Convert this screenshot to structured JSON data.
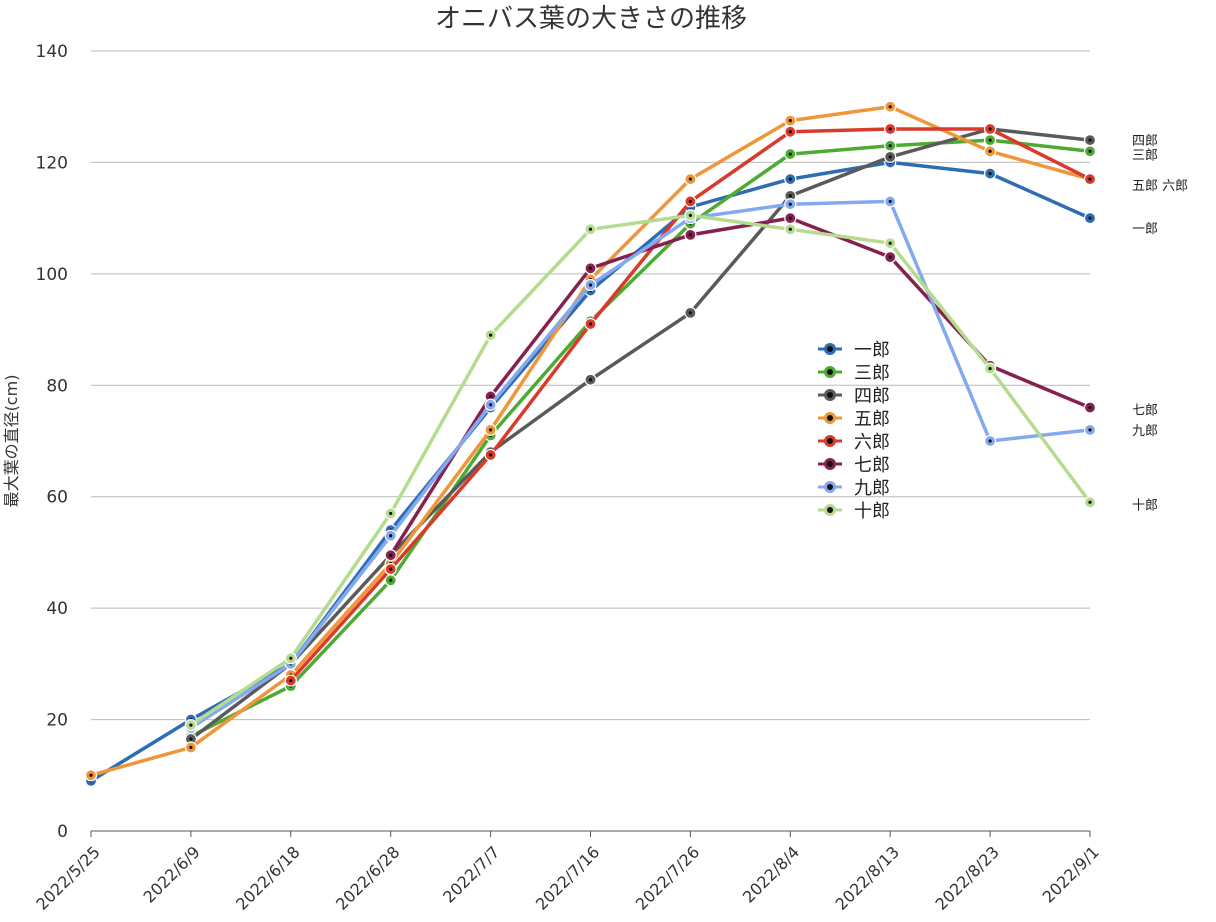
{
  "chart_data": {
    "type": "line",
    "title": "オニバス葉の大きさの推移",
    "xlabel": "",
    "ylabel": "最大葉の直径(cm)",
    "ylim": [
      0,
      140
    ],
    "yticks": [
      "0",
      "20",
      "40",
      "60",
      "80",
      "100",
      "120",
      "140"
    ],
    "grid": true,
    "legend_position": "right-center",
    "categories": [
      "2022/5/25",
      "2022/6/9",
      "2022/6/18",
      "2022/6/28",
      "2022/7/7",
      "2022/7/16",
      "2022/7/26",
      "2022/8/4",
      "2022/8/13",
      "2022/8/23",
      "2022/9/1"
    ],
    "series": [
      {
        "name": "一郎",
        "color": "#2e6db3",
        "values": [
          9,
          20,
          30,
          54,
          76,
          97,
          112,
          117,
          120,
          118,
          110
        ]
      },
      {
        "name": "三郎",
        "color": "#4daa33",
        "values": [
          null,
          17,
          26,
          45,
          71,
          91.5,
          109,
          121.5,
          123,
          124,
          122
        ]
      },
      {
        "name": "四郎",
        "color": "#5a5a5a",
        "values": [
          null,
          16.5,
          30,
          49.5,
          68,
          81,
          93,
          114,
          121,
          126,
          124
        ]
      },
      {
        "name": "五郎",
        "color": "#f0963a",
        "values": [
          10,
          15,
          28,
          48,
          72,
          99,
          117,
          127.5,
          130,
          122,
          117
        ]
      },
      {
        "name": "六郎",
        "color": "#d93b2b",
        "values": [
          null,
          null,
          27,
          47,
          67.5,
          91,
          113,
          125.5,
          126,
          126,
          117
        ]
      },
      {
        "name": "七郎",
        "color": "#86204f",
        "values": [
          null,
          null,
          null,
          49.5,
          78,
          101,
          107,
          110,
          103,
          83.5,
          76
        ]
      },
      {
        "name": "九郎",
        "color": "#84a9ef",
        "values": [
          null,
          18.5,
          30,
          53,
          76.5,
          98,
          110,
          112.5,
          113,
          70,
          72
        ]
      },
      {
        "name": "十郎",
        "color": "#b5db8f",
        "values": [
          null,
          19,
          31,
          57,
          89,
          108,
          110.5,
          108,
          105.5,
          83,
          59
        ]
      }
    ],
    "end_labels": [
      {
        "text": "四郎",
        "series": "四郎"
      },
      {
        "text": "三郎",
        "series": "三郎"
      },
      {
        "text": "五郎  六郎",
        "series": "五郎"
      },
      {
        "text": "一郎",
        "series": "一郎"
      },
      {
        "text": "七郎",
        "series": "七郎"
      },
      {
        "text": "九郎",
        "series": "九郎"
      },
      {
        "text": "十郎",
        "series": "十郎"
      }
    ]
  }
}
